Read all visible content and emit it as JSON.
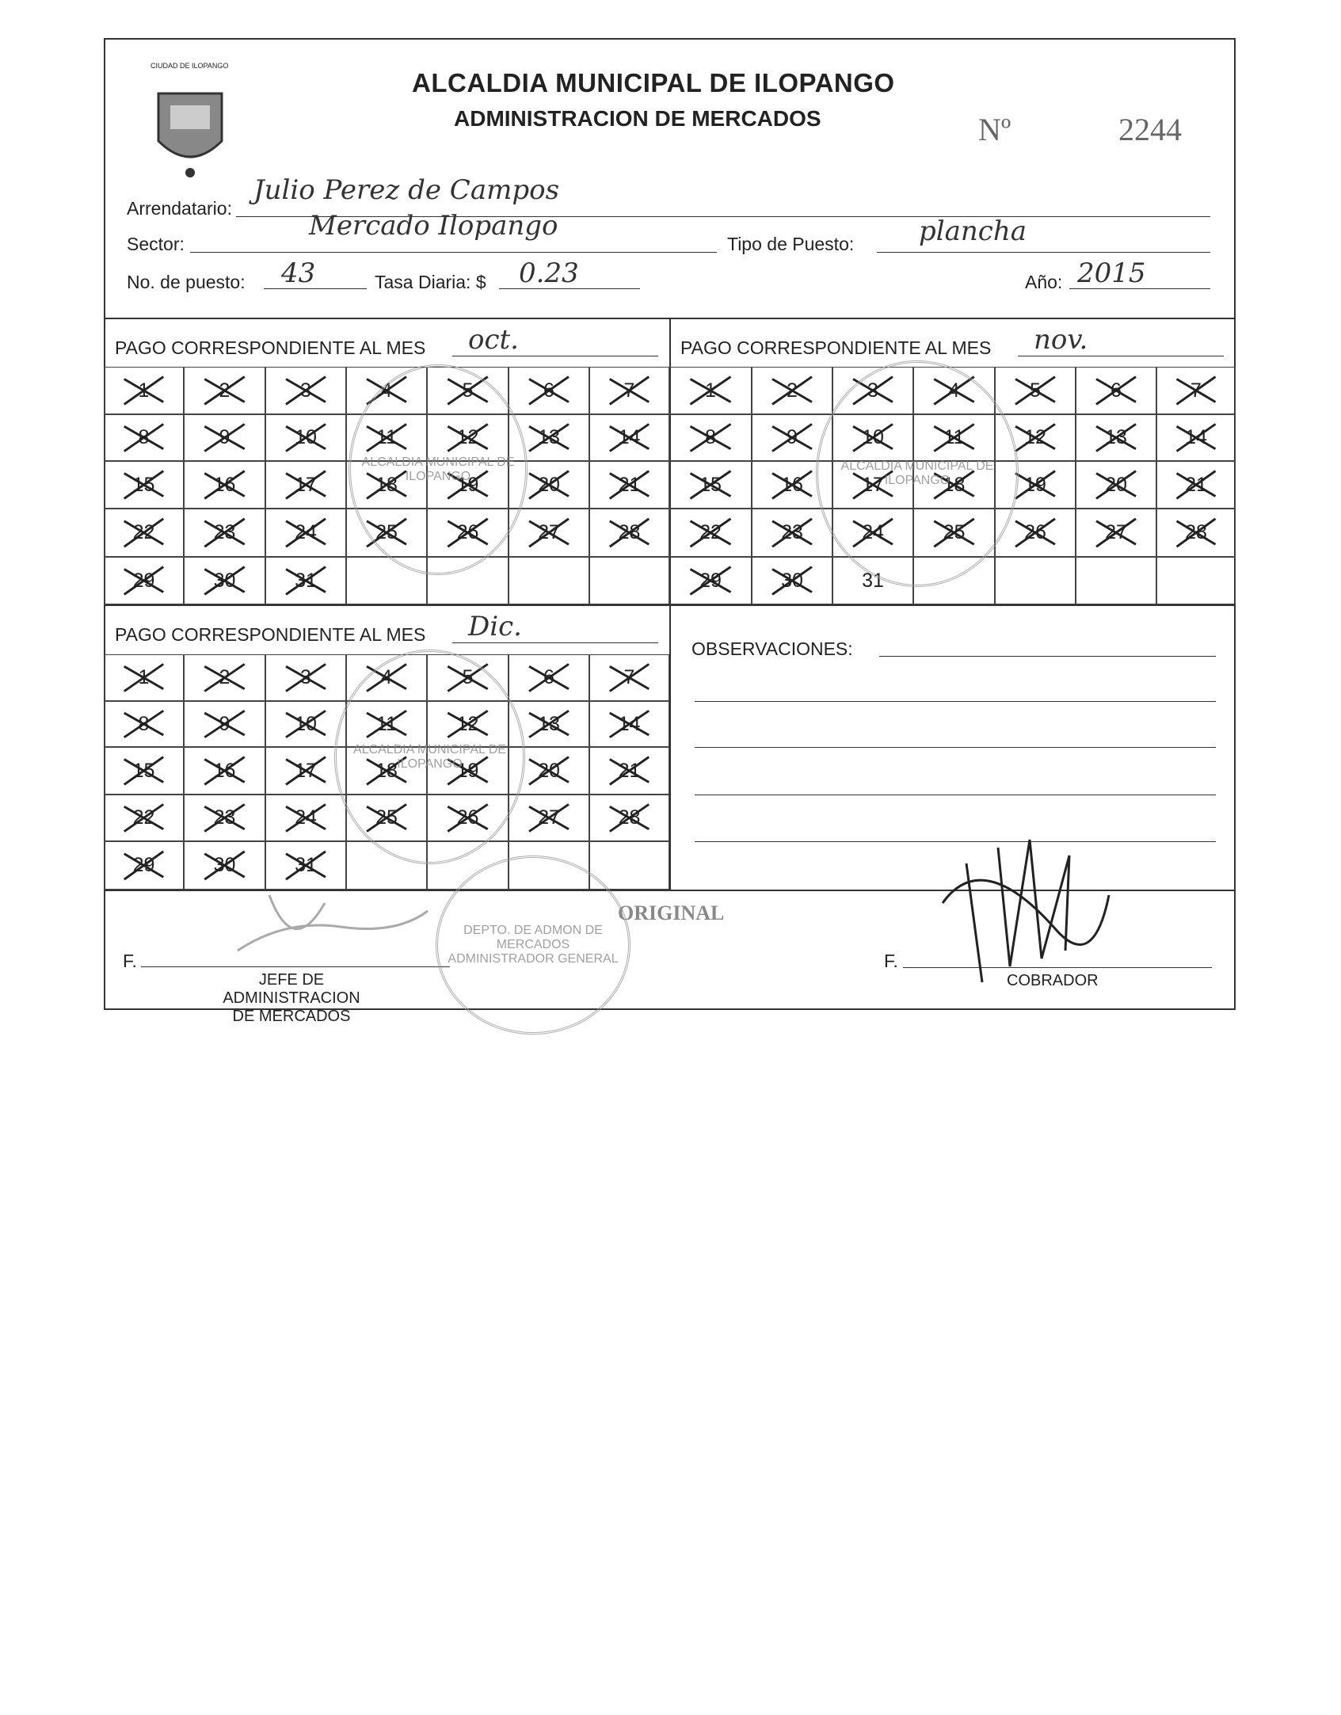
{
  "header": {
    "title": "ALCALDIA MUNICIPAL DE ILOPANGO",
    "subtitle": "ADMINISTRACION DE MERCADOS",
    "number_label": "Nº",
    "number": "2244",
    "seal_text": "CIUDAD DE ILOPANGO"
  },
  "fields": {
    "arrendatario_label": "Arrendatario:",
    "arrendatario": "Julio Perez de Campos",
    "sector_label": "Sector:",
    "sector": "Mercado Ilopango",
    "tipo_label": "Tipo de Puesto:",
    "tipo": "plancha",
    "puesto_label": "No. de puesto:",
    "puesto": "43",
    "tasa_label": "Tasa Diaria: $",
    "tasa": "0.23",
    "anio_label": "Año:",
    "anio": "2015"
  },
  "months": [
    {
      "label": "PAGO CORRESPONDIENTE AL MES",
      "value": "oct.",
      "days": 31,
      "paid": [
        1,
        2,
        3,
        4,
        5,
        6,
        7,
        8,
        9,
        10,
        11,
        12,
        13,
        14,
        15,
        16,
        17,
        18,
        19,
        20,
        21,
        22,
        23,
        24,
        25,
        26,
        27,
        28,
        29,
        30,
        31
      ]
    },
    {
      "label": "PAGO CORRESPONDIENTE AL MES",
      "value": "nov.",
      "days": 31,
      "paid": [
        1,
        2,
        3,
        4,
        5,
        6,
        7,
        8,
        9,
        10,
        11,
        12,
        13,
        14,
        15,
        16,
        17,
        18,
        19,
        20,
        21,
        22,
        23,
        24,
        25,
        26,
        27,
        28,
        29,
        30
      ]
    },
    {
      "label": "PAGO CORRESPONDIENTE AL MES",
      "value": "Dic.",
      "days": 31,
      "paid": [
        1,
        2,
        3,
        4,
        5,
        6,
        7,
        8,
        9,
        10,
        11,
        12,
        13,
        14,
        15,
        16,
        17,
        18,
        19,
        20,
        21,
        22,
        23,
        24,
        25,
        26,
        27,
        28,
        29,
        30,
        31
      ]
    }
  ],
  "observaciones_label": "OBSERVACIONES:",
  "footer": {
    "f1": "F.",
    "jefe_line1": "JEFE DE ADMINISTRACION",
    "jefe_line2": "DE MERCADOS",
    "original": "ORIGINAL",
    "f2": "F.",
    "cobrador": "COBRADOR"
  },
  "stamps": {
    "municipal": "ALCALDIA MUNICIPAL DE ILOPANGO",
    "depto": "DEPTO. DE ADMON DE MERCADOS",
    "admin": "ADMINISTRADOR GENERAL"
  }
}
